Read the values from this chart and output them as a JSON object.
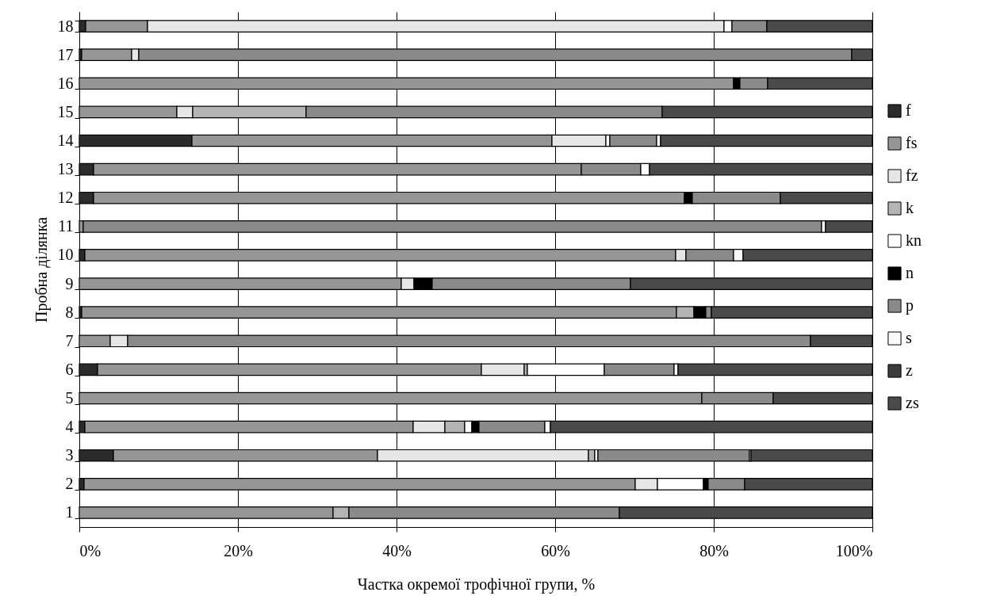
{
  "chart_data": {
    "type": "bar",
    "orientation": "horizontal",
    "stacked": true,
    "xlabel": "Частка окремої трофічної групи, %",
    "ylabel": "Пробна ділянка",
    "categories": [
      "18",
      "17",
      "16",
      "15",
      "14",
      "13",
      "12",
      "11",
      "10",
      "9",
      "8",
      "7",
      "6",
      "5",
      "4",
      "3",
      "2",
      "1"
    ],
    "xlim": [
      0,
      100
    ],
    "xticks": [
      {
        "value": 0,
        "label": "0%"
      },
      {
        "value": 20,
        "label": "20%"
      },
      {
        "value": 40,
        "label": "40%"
      },
      {
        "value": 60,
        "label": "60%"
      },
      {
        "value": 80,
        "label": "80%"
      },
      {
        "value": 100,
        "label": "100%"
      }
    ],
    "grid": "x",
    "legend": "right",
    "series": [
      {
        "name": "f",
        "color": "#2b2b2b",
        "values": [
          0.8,
          0.3,
          null,
          null,
          14.2,
          1.8,
          1.8,
          null,
          0.7,
          null,
          0.3,
          null,
          2.3,
          null,
          0.7,
          4.3,
          0.6,
          null
        ]
      },
      {
        "name": "fs",
        "color": "#969696",
        "values": [
          7.8,
          6.3,
          82.5,
          12.3,
          45.4,
          61.5,
          74.5,
          0.5,
          74.5,
          40.6,
          75.0,
          3.9,
          48.4,
          78.5,
          41.4,
          33.3,
          69.5,
          32.0
        ]
      },
      {
        "name": "fz",
        "color": "#e6e6e6",
        "values": [
          72.7,
          0.9,
          null,
          2.0,
          6.8,
          null,
          null,
          null,
          1.3,
          1.6,
          null,
          2.2,
          5.4,
          null,
          4.0,
          26.6,
          2.8,
          null
        ]
      },
      {
        "name": "k",
        "color": "#b4b4b4",
        "values": [
          null,
          null,
          null,
          14.3,
          null,
          null,
          null,
          null,
          null,
          null,
          2.2,
          null,
          0.4,
          null,
          2.5,
          0.8,
          null,
          2.0
        ]
      },
      {
        "name": "kn",
        "color": "#ffffff",
        "values": [
          1.0,
          null,
          null,
          null,
          0.5,
          null,
          null,
          null,
          null,
          null,
          null,
          null,
          9.7,
          null,
          0.9,
          0.4,
          5.8,
          null
        ]
      },
      {
        "name": "n",
        "color": "#000000",
        "values": [
          null,
          null,
          0.8,
          null,
          null,
          null,
          1.0,
          null,
          null,
          2.3,
          1.5,
          null,
          null,
          null,
          0.9,
          null,
          0.6,
          null
        ]
      },
      {
        "name": "p",
        "color": "#8a8a8a",
        "values": [
          4.4,
          89.9,
          3.5,
          44.9,
          5.9,
          7.5,
          11.1,
          93.1,
          6.0,
          25.0,
          0.7,
          86.1,
          8.8,
          9.0,
          8.3,
          19.1,
          4.6,
          34.1
        ]
      },
      {
        "name": "s",
        "color": "#fafafa",
        "values": [
          null,
          null,
          null,
          null,
          0.5,
          1.1,
          null,
          0.5,
          1.2,
          null,
          null,
          null,
          0.5,
          null,
          0.7,
          0.2,
          null,
          null
        ]
      },
      {
        "name": "z",
        "color": "#3c3c3c",
        "values": [
          null,
          null,
          null,
          null,
          null,
          null,
          null,
          null,
          null,
          null,
          null,
          null,
          null,
          null,
          null,
          null,
          null,
          null
        ]
      },
      {
        "name": "zs",
        "color": "#4a4a4a",
        "values": [
          13.3,
          2.6,
          13.2,
          26.5,
          26.7,
          28.1,
          11.6,
          5.9,
          16.3,
          30.5,
          20.3,
          7.8,
          24.5,
          12.5,
          40.6,
          15.3,
          16.1,
          31.9
        ]
      }
    ]
  }
}
